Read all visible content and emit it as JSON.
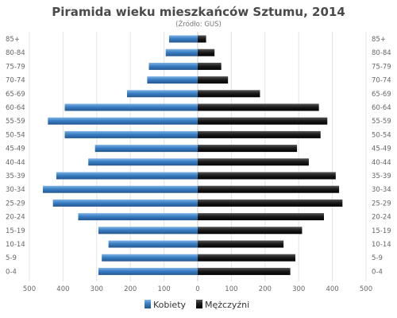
{
  "chart_data": {
    "type": "bar",
    "orientation": "horizontal",
    "title": "Piramida wieku mieszkańców Sztumu, 2014",
    "subtitle": "(Źródło: GUS)",
    "categories": [
      "85+",
      "80-84",
      "75-79",
      "70-74",
      "65-69",
      "60-64",
      "55-59",
      "50-54",
      "45-49",
      "40-44",
      "35-39",
      "30-34",
      "25-29",
      "20-24",
      "15-19",
      "10-14",
      "5-9",
      "0-4"
    ],
    "series": [
      {
        "name": "Kobiety",
        "color": "#3a7fc4",
        "side": "left",
        "values": [
          85,
          95,
          145,
          150,
          210,
          395,
          445,
          395,
          305,
          325,
          420,
          460,
          430,
          355,
          295,
          265,
          285,
          295
        ]
      },
      {
        "name": "Mężczyźni",
        "color": "#1c1c1c",
        "side": "right",
        "values": [
          25,
          50,
          70,
          90,
          185,
          360,
          385,
          365,
          295,
          330,
          410,
          420,
          430,
          375,
          310,
          255,
          290,
          275
        ]
      }
    ],
    "xticks": [
      "500",
      "400",
      "300",
      "200",
      "100",
      "0",
      "100",
      "200",
      "300",
      "400",
      "500"
    ],
    "xlim": [
      -500,
      500
    ],
    "grid": true,
    "legend_position": "bottom-center"
  }
}
